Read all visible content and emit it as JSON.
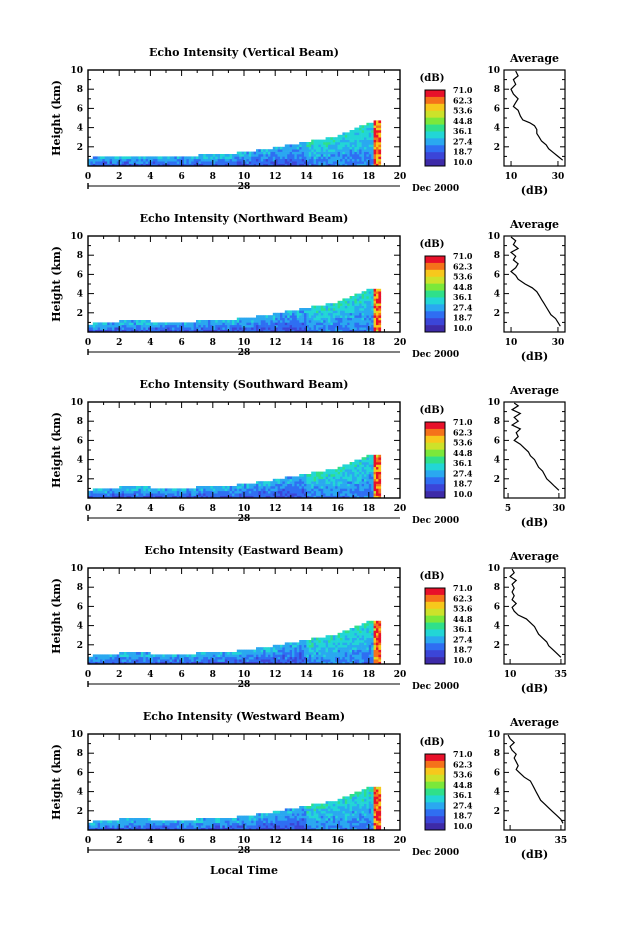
{
  "colorbar": {
    "unit": "(dB)",
    "levels": [
      "71.0",
      "62.3",
      "53.6",
      "44.8",
      "36.1",
      "27.4",
      "18.7",
      "10.0"
    ],
    "colors": [
      "#e8112a",
      "#f5721a",
      "#f7c81c",
      "#cde22a",
      "#7be83a",
      "#2fe08a",
      "#22d6d6",
      "#2aa8f0",
      "#2f6ef2",
      "#3b45d8",
      "#3d2aa8"
    ]
  },
  "profile": {
    "title": "Average",
    "xlabel": "(dB)"
  },
  "chart_data": [
    {
      "type": "heatmap",
      "title": "Echo Intensity (Vertical Beam)",
      "ylabel": "Height (km)",
      "xlim": [
        0,
        20
      ],
      "ylim": [
        0,
        10
      ],
      "x_ticks": [
        "0",
        "2",
        "4",
        "6",
        "8",
        "10",
        "12",
        "14",
        "16",
        "18",
        "20"
      ],
      "y_ticks": [
        "2",
        "4",
        "6",
        "8",
        "10"
      ],
      "date_day": "28",
      "date_month": "Dec 2000",
      "echo_top_km": [
        [
          0,
          0.7
        ],
        [
          2,
          1.0
        ],
        [
          4,
          1.0
        ],
        [
          6,
          0.95
        ],
        [
          8,
          1.05
        ],
        [
          10,
          1.3
        ],
        [
          12,
          1.8
        ],
        [
          14,
          2.4
        ],
        [
          16,
          3.0
        ],
        [
          18,
          4.4
        ],
        [
          18.7,
          4.6
        ]
      ],
      "profile": {
        "x_ticks": [
          "10",
          "30"
        ],
        "xlim": [
          7,
          33
        ],
        "points": [
          [
            12,
            9.9
          ],
          [
            13,
            9.4
          ],
          [
            11,
            9.0
          ],
          [
            12,
            8.5
          ],
          [
            10,
            8.0
          ],
          [
            11,
            7.5
          ],
          [
            13,
            7.0
          ],
          [
            12,
            6.6
          ],
          [
            11,
            6.2
          ],
          [
            13,
            5.8
          ],
          [
            14,
            5.2
          ],
          [
            15,
            4.8
          ],
          [
            18,
            4.5
          ],
          [
            20,
            4.2
          ],
          [
            21,
            3.8
          ],
          [
            21,
            3.4
          ],
          [
            22,
            3.0
          ],
          [
            23,
            2.6
          ],
          [
            25,
            2.2
          ],
          [
            26,
            1.8
          ],
          [
            28,
            1.4
          ],
          [
            30,
            1.0
          ],
          [
            32,
            0.6
          ]
        ]
      }
    },
    {
      "type": "heatmap",
      "title": "Echo Intensity (Northward Beam)",
      "ylabel": "Height (km)",
      "xlim": [
        0,
        20
      ],
      "ylim": [
        0,
        10
      ],
      "x_ticks": [
        "0",
        "2",
        "4",
        "6",
        "8",
        "10",
        "12",
        "14",
        "16",
        "18",
        "20"
      ],
      "y_ticks": [
        "2",
        "4",
        "6",
        "8",
        "10"
      ],
      "date_day": "28",
      "date_month": "Dec 2000",
      "echo_top_km": [
        [
          0,
          0.7
        ],
        [
          2,
          1.0
        ],
        [
          4,
          1.0
        ],
        [
          6,
          0.95
        ],
        [
          8,
          1.05
        ],
        [
          10,
          1.3
        ],
        [
          12,
          1.8
        ],
        [
          14,
          2.4
        ],
        [
          16,
          3.0
        ],
        [
          18,
          4.3
        ],
        [
          18.7,
          4.5
        ]
      ],
      "profile": {
        "x_ticks": [
          "10",
          "30"
        ],
        "xlim": [
          7,
          33
        ],
        "points": [
          [
            10,
            9.9
          ],
          [
            12,
            9.5
          ],
          [
            11,
            9.1
          ],
          [
            13,
            8.7
          ],
          [
            10,
            8.3
          ],
          [
            12,
            7.9
          ],
          [
            11,
            7.5
          ],
          [
            13,
            7.1
          ],
          [
            12,
            6.7
          ],
          [
            10,
            6.3
          ],
          [
            12,
            5.9
          ],
          [
            13,
            5.5
          ],
          [
            16,
            5.0
          ],
          [
            19,
            4.6
          ],
          [
            21,
            4.2
          ],
          [
            22,
            3.8
          ],
          [
            23,
            3.4
          ],
          [
            24,
            3.0
          ],
          [
            25,
            2.6
          ],
          [
            26,
            2.2
          ],
          [
            27,
            1.8
          ],
          [
            29,
            1.4
          ],
          [
            30,
            1.0
          ],
          [
            31,
            0.6
          ]
        ]
      }
    },
    {
      "type": "heatmap",
      "title": "Echo Intensity (Southward Beam)",
      "ylabel": "Height (km)",
      "xlim": [
        0,
        20
      ],
      "ylim": [
        0,
        10
      ],
      "x_ticks": [
        "0",
        "2",
        "4",
        "6",
        "8",
        "10",
        "12",
        "14",
        "16",
        "18",
        "20"
      ],
      "y_ticks": [
        "2",
        "4",
        "6",
        "8",
        "10"
      ],
      "date_day": "28",
      "date_month": "Dec 2000",
      "echo_top_km": [
        [
          0,
          0.7
        ],
        [
          2,
          1.0
        ],
        [
          4,
          1.0
        ],
        [
          6,
          0.95
        ],
        [
          8,
          1.05
        ],
        [
          10,
          1.3
        ],
        [
          12,
          1.8
        ],
        [
          14,
          2.4
        ],
        [
          16,
          3.0
        ],
        [
          18,
          4.3
        ],
        [
          18.7,
          4.5
        ]
      ],
      "profile": {
        "x_ticks": [
          "5",
          "30"
        ],
        "xlim": [
          3,
          33
        ],
        "points": [
          [
            8,
            9.9
          ],
          [
            10,
            9.6
          ],
          [
            7,
            9.2
          ],
          [
            11,
            8.8
          ],
          [
            8,
            8.4
          ],
          [
            10,
            8.0
          ],
          [
            7,
            7.6
          ],
          [
            11,
            7.2
          ],
          [
            9,
            6.8
          ],
          [
            10,
            6.4
          ],
          [
            8,
            6.0
          ],
          [
            11,
            5.6
          ],
          [
            13,
            5.2
          ],
          [
            15,
            4.8
          ],
          [
            16,
            4.4
          ],
          [
            18,
            4.0
          ],
          [
            19,
            3.6
          ],
          [
            20,
            3.2
          ],
          [
            22,
            2.8
          ],
          [
            23,
            2.4
          ],
          [
            24,
            2.0
          ],
          [
            26,
            1.6
          ],
          [
            28,
            1.2
          ],
          [
            30,
            0.8
          ]
        ]
      }
    },
    {
      "type": "heatmap",
      "title": "Echo Intensity (Eastward Beam)",
      "ylabel": "Height (km)",
      "xlim": [
        0,
        20
      ],
      "ylim": [
        0,
        10
      ],
      "x_ticks": [
        "0",
        "2",
        "4",
        "6",
        "8",
        "10",
        "12",
        "14",
        "16",
        "18",
        "20"
      ],
      "y_ticks": [
        "2",
        "4",
        "6",
        "8",
        "10"
      ],
      "date_day": "28",
      "date_month": "Dec 2000",
      "echo_top_km": [
        [
          0,
          0.7
        ],
        [
          2,
          1.0
        ],
        [
          4,
          1.0
        ],
        [
          6,
          0.95
        ],
        [
          8,
          1.05
        ],
        [
          10,
          1.3
        ],
        [
          12,
          1.8
        ],
        [
          14,
          2.4
        ],
        [
          16,
          3.0
        ],
        [
          18,
          4.3
        ],
        [
          18.7,
          4.5
        ]
      ],
      "profile": {
        "x_ticks": [
          "10",
          "35"
        ],
        "xlim": [
          7,
          37
        ],
        "points": [
          [
            11,
            9.9
          ],
          [
            12,
            9.5
          ],
          [
            10,
            9.1
          ],
          [
            13,
            8.7
          ],
          [
            11,
            8.3
          ],
          [
            12,
            7.9
          ],
          [
            11,
            7.5
          ],
          [
            12,
            7.1
          ],
          [
            11,
            6.7
          ],
          [
            13,
            6.3
          ],
          [
            11,
            5.9
          ],
          [
            12,
            5.5
          ],
          [
            14,
            5.1
          ],
          [
            18,
            4.7
          ],
          [
            20,
            4.3
          ],
          [
            22,
            3.9
          ],
          [
            23,
            3.5
          ],
          [
            24,
            3.1
          ],
          [
            26,
            2.7
          ],
          [
            28,
            2.3
          ],
          [
            29,
            1.9
          ],
          [
            31,
            1.5
          ],
          [
            33,
            1.1
          ],
          [
            35,
            0.7
          ]
        ]
      }
    },
    {
      "type": "heatmap",
      "title": "Echo Intensity (Westward Beam)",
      "ylabel": "Height (km)",
      "xlabel": "Local Time",
      "xlim": [
        0,
        20
      ],
      "ylim": [
        0,
        10
      ],
      "x_ticks": [
        "0",
        "2",
        "4",
        "6",
        "8",
        "10",
        "12",
        "14",
        "16",
        "18",
        "20"
      ],
      "y_ticks": [
        "2",
        "4",
        "6",
        "8",
        "10"
      ],
      "date_day": "28",
      "date_month": "Dec 2000",
      "echo_top_km": [
        [
          0,
          0.7
        ],
        [
          2,
          1.0
        ],
        [
          4,
          1.0
        ],
        [
          6,
          0.95
        ],
        [
          8,
          1.05
        ],
        [
          10,
          1.3
        ],
        [
          12,
          1.8
        ],
        [
          14,
          2.4
        ],
        [
          16,
          3.0
        ],
        [
          18,
          4.3
        ],
        [
          18.7,
          4.5
        ]
      ],
      "profile": {
        "x_ticks": [
          "10",
          "35"
        ],
        "xlim": [
          7,
          37
        ],
        "points": [
          [
            9,
            9.9
          ],
          [
            10,
            9.5
          ],
          [
            12,
            9.1
          ],
          [
            10,
            8.7
          ],
          [
            11,
            8.3
          ],
          [
            13,
            7.9
          ],
          [
            12,
            7.5
          ],
          [
            13,
            7.1
          ],
          [
            14,
            6.7
          ],
          [
            13,
            6.3
          ],
          [
            15,
            5.9
          ],
          [
            17,
            5.5
          ],
          [
            20,
            5.1
          ],
          [
            21,
            4.7
          ],
          [
            22,
            4.3
          ],
          [
            23,
            3.9
          ],
          [
            24,
            3.5
          ],
          [
            25,
            3.1
          ],
          [
            27,
            2.7
          ],
          [
            29,
            2.3
          ],
          [
            31,
            1.9
          ],
          [
            33,
            1.5
          ],
          [
            35,
            1.1
          ],
          [
            36,
            0.7
          ]
        ]
      }
    }
  ]
}
